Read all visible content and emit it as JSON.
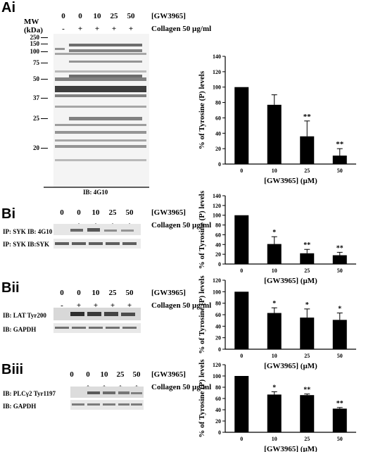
{
  "concentration_label": "[GW3965]",
  "collagen_label": "Collagen 50 µg/ml",
  "lanes": [
    "0",
    "0",
    "10",
    "25",
    "50"
  ],
  "treatment": [
    "-",
    "+",
    "+",
    "+",
    "+"
  ],
  "panel_ai": {
    "label": "Ai",
    "mw_title": "MW",
    "mw_unit": "(kDa)",
    "mw_markers": [
      "250",
      "150",
      "100",
      "75",
      "50",
      "37",
      "25",
      "20"
    ],
    "ib_label": "IB: 4G10"
  },
  "panel_bi": {
    "label": "Bi",
    "blot_labels": [
      "IP: SYK IB: 4G10",
      "IP: SYK IB:SYK"
    ]
  },
  "panel_bii": {
    "label": "Bii",
    "blot_labels": [
      "IB: LAT Tyr200",
      "IB: GAPDH"
    ]
  },
  "panel_biii": {
    "label": "Biii",
    "blot_labels": [
      "IB: PLCγ2 Tyr1197",
      "IB: GAPDH"
    ]
  },
  "chart_data": [
    {
      "type": "bar",
      "categories": [
        "0",
        "10",
        "25",
        "50"
      ],
      "values": [
        100,
        77,
        36,
        11
      ],
      "errors": [
        0,
        13,
        20,
        9
      ],
      "annotations": [
        "",
        "",
        "**",
        "**"
      ],
      "ylabel": "% of Tyrosine (P) levels",
      "xlabel": "[GW3965] (µM)",
      "ylim": [
        0,
        140
      ],
      "yticks": [
        "0",
        "20",
        "40",
        "60",
        "80",
        "100",
        "120",
        "140"
      ]
    },
    {
      "type": "bar",
      "categories": [
        "0",
        "10",
        "25",
        "50"
      ],
      "values": [
        100,
        41,
        22,
        18
      ],
      "errors": [
        0,
        15,
        8,
        6
      ],
      "annotations": [
        "",
        "*",
        "**",
        "**"
      ],
      "ylabel": "% of Tyrosine (P) levels",
      "xlabel": "[GW3965] (µM)",
      "ylim": [
        0,
        140
      ],
      "yticks": [
        "0",
        "20",
        "40",
        "60",
        "80",
        "100",
        "120",
        "140"
      ]
    },
    {
      "type": "bar",
      "categories": [
        "0",
        "10",
        "25",
        "50"
      ],
      "values": [
        100,
        63,
        55,
        51
      ],
      "errors": [
        0,
        9,
        15,
        12
      ],
      "annotations": [
        "",
        "*",
        "*",
        "*"
      ],
      "ylabel": "% of Tyrosine (P) levels",
      "xlabel": "[GW3965] (µM)",
      "ylim": [
        0,
        120
      ],
      "yticks": [
        "0",
        "20",
        "40",
        "60",
        "80",
        "100",
        "120"
      ]
    },
    {
      "type": "bar",
      "categories": [
        "0",
        "10",
        "25",
        "50"
      ],
      "values": [
        100,
        67,
        66,
        42
      ],
      "errors": [
        0,
        5,
        2,
        2
      ],
      "annotations": [
        "",
        "*",
        "**",
        "**"
      ],
      "ylabel": "% of Tyrosine (P) levels",
      "xlabel": "[GW3965] (µM)",
      "ylim": [
        0,
        120
      ],
      "yticks": [
        "0",
        "20",
        "40",
        "60",
        "80",
        "100",
        "120"
      ]
    }
  ]
}
